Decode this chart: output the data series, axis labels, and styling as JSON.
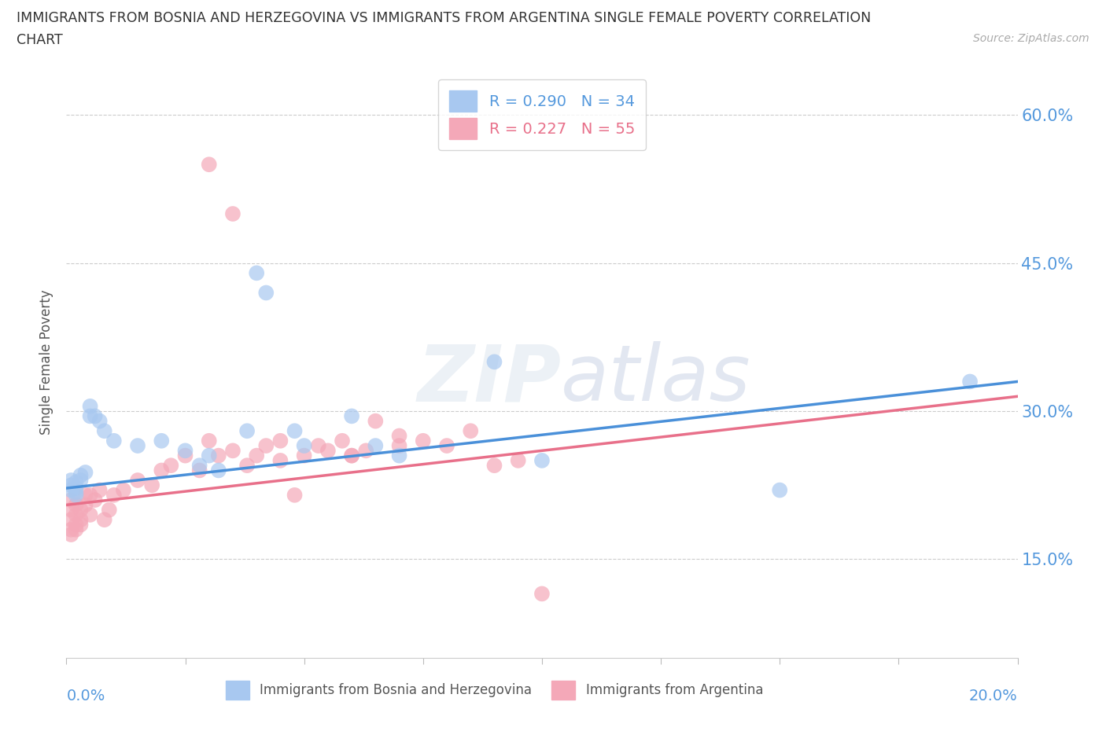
{
  "title": "IMMIGRANTS FROM BOSNIA AND HERZEGOVINA VS IMMIGRANTS FROM ARGENTINA SINGLE FEMALE POVERTY CORRELATION\nCHART",
  "source": "Source: ZipAtlas.com",
  "ylabel": "Single Female Poverty",
  "ytick_labels": [
    "15.0%",
    "30.0%",
    "45.0%",
    "60.0%"
  ],
  "ytick_values": [
    0.15,
    0.3,
    0.45,
    0.6
  ],
  "xlim": [
    0.0,
    0.2
  ],
  "ylim": [
    0.05,
    0.65
  ],
  "r_bosnia": 0.29,
  "n_bosnia": 34,
  "r_argentina": 0.227,
  "n_argentina": 55,
  "color_bosnia": "#a8c8f0",
  "color_argentina": "#f4a8b8",
  "color_bosnia_line": "#4a90d9",
  "color_argentina_line": "#e8708a",
  "bosnia_x": [
    0.001,
    0.001,
    0.001,
    0.002,
    0.002,
    0.002,
    0.002,
    0.003,
    0.003,
    0.004,
    0.005,
    0.005,
    0.006,
    0.007,
    0.008,
    0.01,
    0.015,
    0.02,
    0.025,
    0.028,
    0.03,
    0.032,
    0.038,
    0.04,
    0.042,
    0.048,
    0.05,
    0.06,
    0.065,
    0.07,
    0.09,
    0.1,
    0.15,
    0.19
  ],
  "bosnia_y": [
    0.22,
    0.225,
    0.23,
    0.215,
    0.218,
    0.222,
    0.228,
    0.23,
    0.235,
    0.238,
    0.295,
    0.305,
    0.295,
    0.29,
    0.28,
    0.27,
    0.265,
    0.27,
    0.26,
    0.245,
    0.255,
    0.24,
    0.28,
    0.44,
    0.42,
    0.28,
    0.265,
    0.295,
    0.265,
    0.255,
    0.35,
    0.25,
    0.22,
    0.33
  ],
  "argentina_x": [
    0.001,
    0.001,
    0.001,
    0.001,
    0.001,
    0.002,
    0.002,
    0.002,
    0.002,
    0.003,
    0.003,
    0.003,
    0.004,
    0.004,
    0.005,
    0.005,
    0.006,
    0.007,
    0.008,
    0.009,
    0.01,
    0.012,
    0.015,
    0.018,
    0.02,
    0.022,
    0.025,
    0.028,
    0.03,
    0.032,
    0.035,
    0.038,
    0.04,
    0.042,
    0.045,
    0.048,
    0.05,
    0.053,
    0.055,
    0.058,
    0.06,
    0.063,
    0.065,
    0.07,
    0.075,
    0.08,
    0.085,
    0.09,
    0.095,
    0.1,
    0.03,
    0.035,
    0.045,
    0.06,
    0.07
  ],
  "argentina_y": [
    0.19,
    0.2,
    0.21,
    0.18,
    0.175,
    0.195,
    0.205,
    0.185,
    0.18,
    0.2,
    0.19,
    0.185,
    0.205,
    0.215,
    0.215,
    0.195,
    0.21,
    0.22,
    0.19,
    0.2,
    0.215,
    0.22,
    0.23,
    0.225,
    0.24,
    0.245,
    0.255,
    0.24,
    0.27,
    0.255,
    0.26,
    0.245,
    0.255,
    0.265,
    0.27,
    0.215,
    0.255,
    0.265,
    0.26,
    0.27,
    0.255,
    0.26,
    0.29,
    0.275,
    0.27,
    0.265,
    0.28,
    0.245,
    0.25,
    0.115,
    0.55,
    0.5,
    0.25,
    0.255,
    0.265
  ]
}
